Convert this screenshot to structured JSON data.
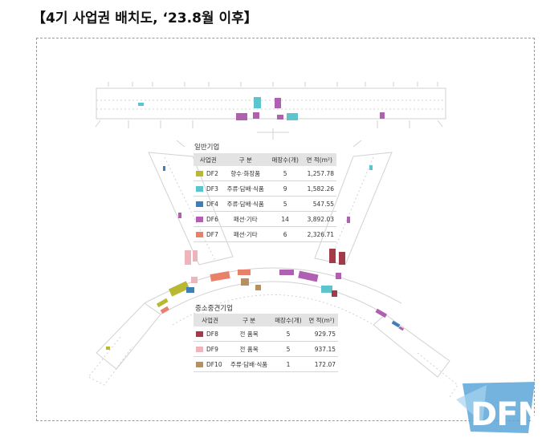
{
  "title": "【4기 사업권 배치도, ‘23.8월 이후】",
  "general_table": {
    "label": "일반기업",
    "headers": [
      "사업권",
      "구 분",
      "매장수(개)",
      "면 적(m²)"
    ],
    "rows": [
      {
        "code": "DF2",
        "category": "향수·화장품",
        "stores": "5",
        "area": "1,257.78",
        "color": "#b8b832"
      },
      {
        "code": "DF3",
        "category": "주류·담배·식품",
        "stores": "9",
        "area": "1,582.26",
        "color": "#5cc4cc"
      },
      {
        "code": "DF4",
        "category": "주류·담배·식품",
        "stores": "5",
        "area": "547.55",
        "color": "#3f7fb8"
      },
      {
        "code": "DF6",
        "category": "패션·기타",
        "stores": "14",
        "area": "3,892.03",
        "color": "#b060b0"
      },
      {
        "code": "DF7",
        "category": "패션·기타",
        "stores": "6",
        "area": "2,326.71",
        "color": "#e8806a"
      }
    ]
  },
  "sme_table": {
    "label": "중소중견기업",
    "headers": [
      "사업권",
      "구 분",
      "매장수(개)",
      "면 적(m²)"
    ],
    "rows": [
      {
        "code": "DF8",
        "category": "전 품목",
        "stores": "5",
        "area": "929.75",
        "color": "#a33a4a"
      },
      {
        "code": "DF9",
        "category": "전 품목",
        "stores": "5",
        "area": "937.15",
        "color": "#eeb4bc"
      },
      {
        "code": "DF10",
        "category": "주류·담배·식품",
        "stores": "1",
        "area": "172.07",
        "color": "#b89060"
      }
    ]
  },
  "logo": {
    "text": "DFN",
    "color": "#5aa6d8"
  }
}
